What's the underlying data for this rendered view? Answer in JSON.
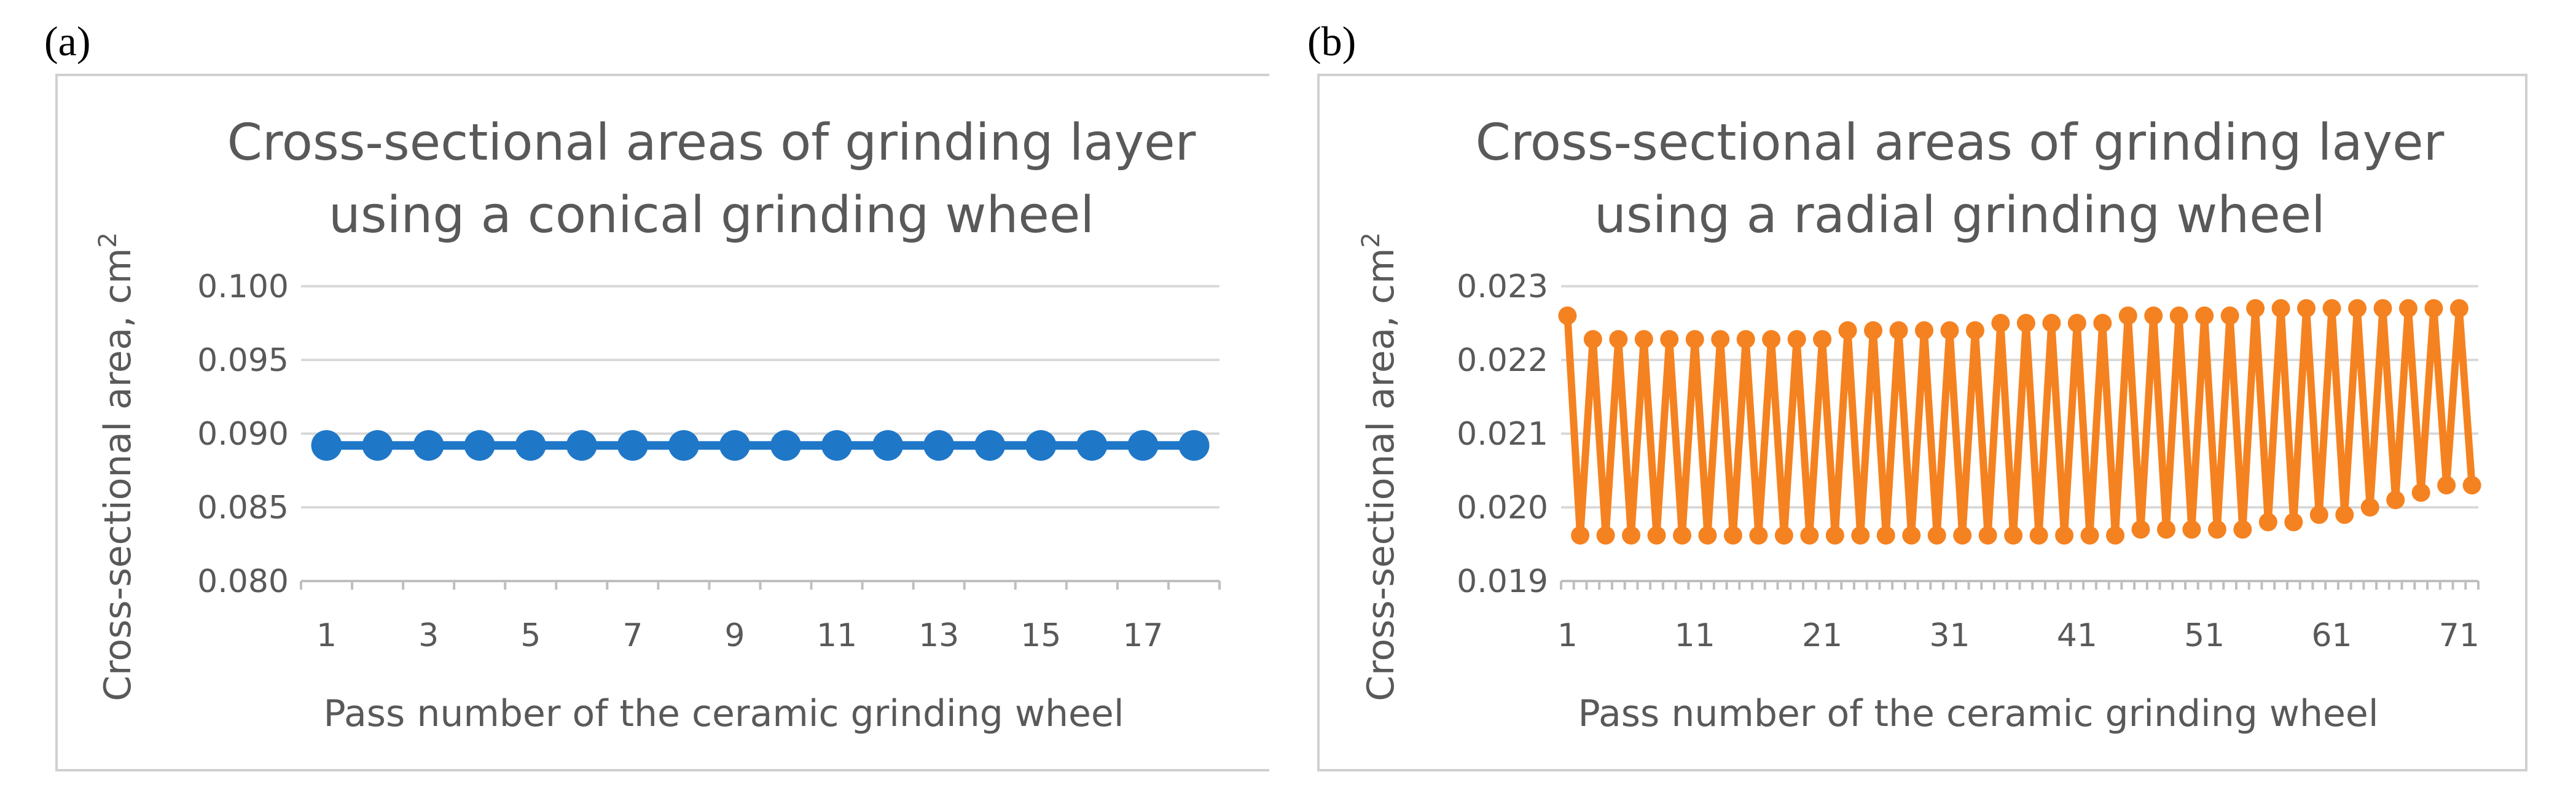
{
  "panels": {
    "a": {
      "letter": "(a)"
    },
    "b": {
      "letter": "(b)"
    }
  },
  "chart_data": [
    {
      "type": "line",
      "panel": "a",
      "title_line1": "Cross-sectional areas of grinding layer",
      "title_line2": "using a conical grinding wheel",
      "xlabel": "Pass number of the ceramic grinding wheel",
      "ylabel": "Cross-sectional area, cm",
      "ylabel_superscript": "2",
      "ylim": [
        0.08,
        0.1
      ],
      "yticks": [
        "0.100",
        "0.095",
        "0.090",
        "0.085",
        "0.080"
      ],
      "ytick_values": [
        0.1,
        0.095,
        0.09,
        0.085,
        0.08
      ],
      "xlabels_every": 2,
      "color": "#1f77c8",
      "series": [
        {
          "name": "Cross-sectional area",
          "x": [
            1,
            2,
            3,
            4,
            5,
            6,
            7,
            8,
            9,
            10,
            11,
            12,
            13,
            14,
            15,
            16,
            17,
            18
          ],
          "values": [
            0.0892,
            0.0892,
            0.0892,
            0.0892,
            0.0892,
            0.0892,
            0.0892,
            0.0892,
            0.0892,
            0.0892,
            0.0892,
            0.0892,
            0.0892,
            0.0892,
            0.0892,
            0.0892,
            0.0892,
            0.0892
          ]
        }
      ]
    },
    {
      "type": "line",
      "panel": "b",
      "title_line1": "Cross-sectional areas of grinding layer",
      "title_line2": "using a radial grinding wheel",
      "xlabel": "Pass number of the ceramic grinding wheel",
      "ylabel": "Cross-sectional area, cm",
      "ylabel_superscript": "2",
      "ylim": [
        0.019,
        0.023
      ],
      "yticks": [
        "0.023",
        "0.022",
        "0.021",
        "0.020",
        "0.019"
      ],
      "ytick_values": [
        0.023,
        0.022,
        0.021,
        0.02,
        0.019
      ],
      "xlabels_every": 10,
      "color": "#f58220",
      "series": [
        {
          "name": "Cross-sectional area",
          "x": [
            1,
            2,
            3,
            4,
            5,
            6,
            7,
            8,
            9,
            10,
            11,
            12,
            13,
            14,
            15,
            16,
            17,
            18,
            19,
            20,
            21,
            22,
            23,
            24,
            25,
            26,
            27,
            28,
            29,
            30,
            31,
            32,
            33,
            34,
            35,
            36,
            37,
            38,
            39,
            40,
            41,
            42,
            43,
            44,
            45,
            46,
            47,
            48,
            49,
            50,
            51,
            52,
            53,
            54,
            55,
            56,
            57,
            58,
            59,
            60,
            61,
            62,
            63,
            64,
            65,
            66,
            67,
            68,
            69,
            70,
            71,
            72
          ],
          "values": [
            0.0226,
            0.01962,
            0.02228,
            0.01962,
            0.02228,
            0.01962,
            0.02228,
            0.01962,
            0.02228,
            0.01962,
            0.02228,
            0.01962,
            0.02228,
            0.01962,
            0.02228,
            0.01962,
            0.02228,
            0.01962,
            0.02228,
            0.01962,
            0.02228,
            0.01962,
            0.0224,
            0.01962,
            0.0224,
            0.01962,
            0.0224,
            0.01962,
            0.0224,
            0.01962,
            0.0224,
            0.01962,
            0.0224,
            0.01962,
            0.0225,
            0.01962,
            0.0225,
            0.01962,
            0.0225,
            0.01962,
            0.0225,
            0.01962,
            0.0225,
            0.01962,
            0.0226,
            0.0197,
            0.0226,
            0.0197,
            0.0226,
            0.0197,
            0.0226,
            0.0197,
            0.0226,
            0.0197,
            0.0227,
            0.0198,
            0.0227,
            0.0198,
            0.0227,
            0.0199,
            0.0227,
            0.0199,
            0.0227,
            0.02,
            0.0227,
            0.0201,
            0.0227,
            0.0202,
            0.0227,
            0.0203,
            0.0227,
            0.0203
          ]
        }
      ]
    }
  ]
}
